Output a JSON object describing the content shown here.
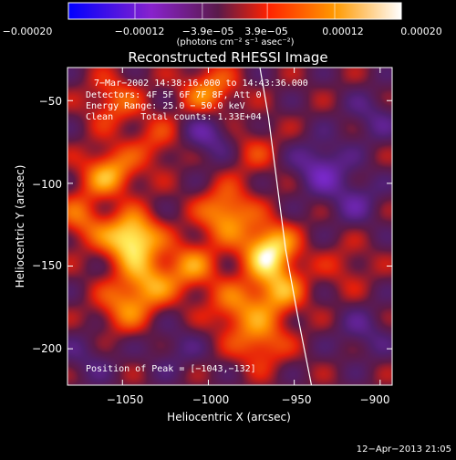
{
  "chart_data": {
    "type": "heatmap",
    "title": "Reconstructed RHESSI Image",
    "xlabel": "Heliocentric X (arcsec)",
    "ylabel": "Heliocentric Y (arcsec)",
    "xlim": [
      -1082,
      -893
    ],
    "ylim": [
      -222,
      -30
    ],
    "xticks": [
      -1050,
      -1000,
      -950,
      -900
    ],
    "xtick_labels": [
      "−1050",
      "−1000",
      "−950",
      "−900"
    ],
    "yticks": [
      -50,
      -100,
      -150,
      -200
    ],
    "ytick_labels": [
      "−50",
      "−100",
      "−150",
      "−200"
    ],
    "colorbar": {
      "range": [
        -0.0002,
        0.0002
      ],
      "tick_labels": [
        "−0.00020",
        "−0.00012",
        "−3.9e−05",
        "3.9e−05",
        "0.00012",
        "0.00020"
      ],
      "unit_label": "(photons cm⁻² s⁻¹ asec⁻²)",
      "colors": [
        "#0000ff",
        "#8822cc",
        "#6a2a6a",
        "#ff3300",
        "#ff9900",
        "#ffffff"
      ]
    },
    "annotations": [
      "7−Mar−2002 14:38:16.000 to 14:43:36.000",
      "Detectors: 4F 5F 6F 7F 8F, Att 0",
      "Energy Range: 25.0 − 50.0 keV",
      "Clean     Total counts: 1.33E+04"
    ],
    "peak_text": "Position of Peak = [−1043,−132]",
    "limb_curve": [
      [
        -970,
        -30
      ],
      [
        -965,
        -60
      ],
      [
        -960,
        -100
      ],
      [
        -955,
        -140
      ],
      [
        -948,
        -180
      ],
      [
        -940,
        -222
      ]
    ],
    "sources": [
      {
        "x": -1045,
        "y": -133,
        "value": 0.0002
      },
      {
        "x": -965,
        "y": -140,
        "value": 0.00018
      },
      {
        "x": -1058,
        "y": -95,
        "value": 0.00014
      },
      {
        "x": -990,
        "y": -118,
        "value": 0.00013
      },
      {
        "x": -960,
        "y": -165,
        "value": 0.00012
      },
      {
        "x": -1010,
        "y": -150,
        "value": 0.0001
      },
      {
        "x": -1035,
        "y": -160,
        "value": 0.00011
      },
      {
        "x": -970,
        "y": -195,
        "value": 0.0001
      },
      {
        "x": -1072,
        "y": -120,
        "value": 0.0001
      },
      {
        "x": -1000,
        "y": -45,
        "value": 0.00011
      },
      {
        "x": -1055,
        "y": -50,
        "value": 8e-05
      },
      {
        "x": -1050,
        "y": -175,
        "value": 9e-05
      },
      {
        "x": -985,
        "y": -175,
        "value": 9e-05
      },
      {
        "x": -1030,
        "y": -75,
        "value": 6e-05
      },
      {
        "x": -975,
        "y": -80,
        "value": 5e-05
      },
      {
        "x": -920,
        "y": -150,
        "value": 4e-05
      },
      {
        "x": -1000,
        "y": -70,
        "value": -8e-05
      },
      {
        "x": -935,
        "y": -90,
        "value": -9e-05
      },
      {
        "x": -915,
        "y": -110,
        "value": -6e-05
      },
      {
        "x": -905,
        "y": -60,
        "value": -5e-05
      },
      {
        "x": -1060,
        "y": -112,
        "value": -5e-05
      },
      {
        "x": -1020,
        "y": -200,
        "value": -4e-05
      },
      {
        "x": -910,
        "y": -190,
        "value": -5e-05
      },
      {
        "x": -1070,
        "y": -205,
        "value": -4e-05
      }
    ]
  },
  "footer": {
    "timestamp": "12−Apr−2013 21:05"
  }
}
